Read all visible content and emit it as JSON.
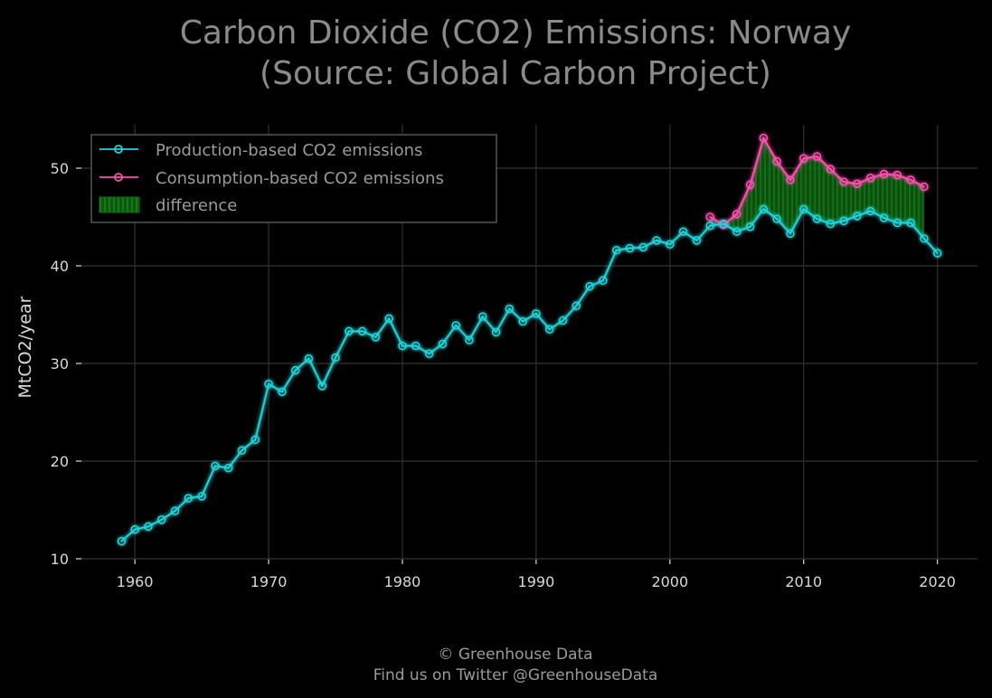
{
  "chart_data": {
    "type": "line",
    "title": [
      "Carbon Dioxide (CO2) Emissions: Norway",
      "(Source: Global Carbon Project)"
    ],
    "xlabel": "",
    "ylabel": "MtCO2/year",
    "xlim": [
      1956,
      2023
    ],
    "ylim": [
      10,
      55
    ],
    "xticks": [
      1960,
      1970,
      1980,
      1990,
      2000,
      2010,
      2020
    ],
    "yticks": [
      10,
      20,
      30,
      40,
      50
    ],
    "grid": true,
    "legend_position": "top-left",
    "legend": [
      "Production-based CO2 emissions",
      "Consumption-based CO2 emissions",
      "difference"
    ],
    "colors": {
      "production": "#1fd6dc",
      "consumption": "#ff4fb0",
      "difference": "#0f6b12",
      "grid": "#2a2a2a"
    },
    "series": [
      {
        "name": "Production-based CO2 emissions",
        "x": [
          1959,
          1960,
          1961,
          1962,
          1963,
          1964,
          1965,
          1966,
          1967,
          1968,
          1969,
          1970,
          1971,
          1972,
          1973,
          1974,
          1975,
          1976,
          1977,
          1978,
          1979,
          1980,
          1981,
          1982,
          1983,
          1984,
          1985,
          1986,
          1987,
          1988,
          1989,
          1990,
          1991,
          1992,
          1993,
          1994,
          1995,
          1996,
          1997,
          1998,
          1999,
          2000,
          2001,
          2002,
          2003,
          2004,
          2005,
          2006,
          2007,
          2008,
          2009,
          2010,
          2011,
          2012,
          2013,
          2014,
          2015,
          2016,
          2017,
          2018,
          2019,
          2020
        ],
        "values": [
          11.8,
          13.0,
          13.3,
          14.0,
          14.9,
          16.2,
          16.4,
          19.5,
          19.3,
          21.1,
          22.2,
          27.9,
          27.1,
          29.3,
          30.5,
          27.7,
          30.6,
          33.3,
          33.3,
          32.7,
          34.6,
          31.8,
          31.8,
          31.0,
          32.0,
          33.9,
          32.4,
          34.8,
          33.2,
          35.6,
          34.3,
          35.1,
          33.5,
          34.4,
          35.9,
          37.9,
          38.5,
          41.6,
          41.8,
          41.9,
          42.6,
          42.2,
          43.5,
          42.6,
          44.1,
          44.3,
          43.5,
          44.0,
          45.8,
          44.8,
          43.3,
          45.8,
          44.8,
          44.3,
          44.6,
          45.1,
          45.6,
          44.9,
          44.4,
          44.4,
          42.8,
          41.3
        ]
      },
      {
        "name": "Consumption-based CO2 emissions",
        "x": [
          2003,
          2004,
          2005,
          2006,
          2007,
          2008,
          2009,
          2010,
          2011,
          2012,
          2013,
          2014,
          2015,
          2016,
          2017,
          2018,
          2019
        ],
        "values": [
          45.0,
          44.2,
          45.3,
          48.3,
          53.1,
          50.7,
          48.8,
          51.0,
          51.2,
          49.9,
          48.6,
          48.4,
          49.0,
          49.4,
          49.3,
          48.8,
          48.1
        ]
      }
    ]
  },
  "footer": {
    "line1": "© Greenhouse Data",
    "line2": "Find us on Twitter @GreenhouseData"
  }
}
